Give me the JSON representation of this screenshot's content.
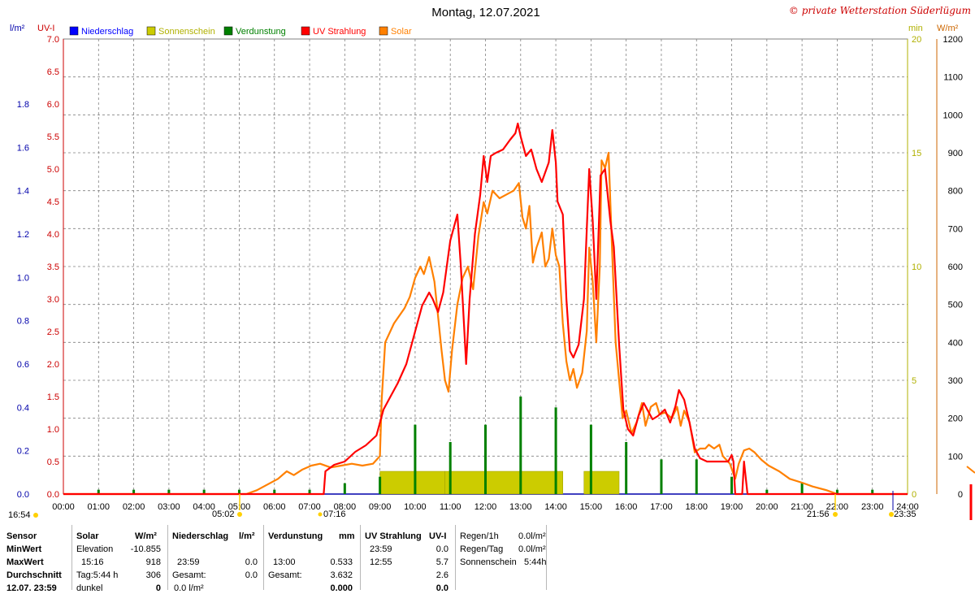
{
  "title": "Montag, 12.07.2021",
  "copyright": "© private Wetterstation Süderlügum",
  "left_axis_units": [
    "l/m²",
    "UV-I"
  ],
  "right_axis_units": [
    "min",
    "W/m²"
  ],
  "legend": [
    {
      "name": "Niederschlag",
      "color": "#0000ff"
    },
    {
      "name": "Sonnenschein",
      "color": "#cccc00"
    },
    {
      "name": "Verdunstung",
      "color": "#008000"
    },
    {
      "name": "UV Strahlung",
      "color": "#ff0000"
    },
    {
      "name": "Solar",
      "color": "#ff8000"
    }
  ],
  "colors": {
    "niederschlag": "#0000ff",
    "sonnenschein": "#cccc00",
    "verdunstung": "#008000",
    "uv": "#ff0000",
    "solar": "#ff8000",
    "uvaxis": "#dd0000",
    "sunaxis": "#b0b000",
    "grid": "#808080"
  },
  "sun_marks": {
    "sunrise": "05:02",
    "sunset": "21:56",
    "uv_start": "07:16",
    "moon_left": "16:54",
    "moon_right": "23:35"
  },
  "chart_data": {
    "type": "line",
    "x_axis": {
      "ticks": [
        "00:00",
        "01:00",
        "02:00",
        "03:00",
        "04:00",
        "05:00",
        "06:00",
        "07:00",
        "08:00",
        "09:00",
        "10:00",
        "11:00",
        "12:00",
        "13:00",
        "14:00",
        "15:00",
        "16:00",
        "17:00",
        "18:00",
        "19:00",
        "20:00",
        "21:00",
        "22:00",
        "23:00",
        "24:00"
      ],
      "range_hours": [
        0,
        24
      ]
    },
    "y_axes": {
      "niederschlag": {
        "unit": "l/m²",
        "ticks": [
          "0.0",
          "0.2",
          "0.4",
          "0.6",
          "0.8",
          "1.0",
          "1.2",
          "1.4",
          "1.6",
          "1.8"
        ],
        "range": [
          0,
          2.1
        ]
      },
      "uv_index": {
        "unit": "UV-I",
        "ticks": [
          "0.0",
          "0.5",
          "1.0",
          "1.5",
          "2.0",
          "2.5",
          "3.0",
          "3.5",
          "4.0",
          "4.5",
          "5.0",
          "5.5",
          "6.0",
          "6.5",
          "7.0"
        ],
        "range": [
          0,
          7
        ]
      },
      "sunshine_min": {
        "unit": "min",
        "ticks": [
          "0",
          "5",
          "10",
          "15",
          "20"
        ],
        "range": [
          0,
          20
        ]
      },
      "solar": {
        "unit": "W/m²",
        "ticks": [
          "0",
          "100",
          "200",
          "300",
          "400",
          "500",
          "600",
          "700",
          "800",
          "900",
          "1000",
          "1100",
          "1200"
        ],
        "range": [
          0,
          1200
        ]
      }
    },
    "grid": true,
    "series": [
      {
        "name": "UV Strahlung",
        "axis": "uv_index",
        "color": "#ff0000",
        "points": [
          [
            0,
            0
          ],
          [
            7.4,
            0
          ],
          [
            7.45,
            0.35
          ],
          [
            7.7,
            0.45
          ],
          [
            8.0,
            0.5
          ],
          [
            8.3,
            0.65
          ],
          [
            8.6,
            0.75
          ],
          [
            8.9,
            0.9
          ],
          [
            9.1,
            1.3
          ],
          [
            9.3,
            1.5
          ],
          [
            9.5,
            1.7
          ],
          [
            9.75,
            2.0
          ],
          [
            10.0,
            2.5
          ],
          [
            10.2,
            2.9
          ],
          [
            10.4,
            3.1
          ],
          [
            10.5,
            3.0
          ],
          [
            10.65,
            2.8
          ],
          [
            10.8,
            3.1
          ],
          [
            11.0,
            3.9
          ],
          [
            11.2,
            4.3
          ],
          [
            11.3,
            3.5
          ],
          [
            11.45,
            2.0
          ],
          [
            11.55,
            3.0
          ],
          [
            11.7,
            4.0
          ],
          [
            11.85,
            4.6
          ],
          [
            11.95,
            5.2
          ],
          [
            12.05,
            4.8
          ],
          [
            12.15,
            5.2
          ],
          [
            12.3,
            5.25
          ],
          [
            12.5,
            5.3
          ],
          [
            12.7,
            5.45
          ],
          [
            12.85,
            5.55
          ],
          [
            12.92,
            5.7
          ],
          [
            13.0,
            5.5
          ],
          [
            13.15,
            5.2
          ],
          [
            13.3,
            5.3
          ],
          [
            13.45,
            5.0
          ],
          [
            13.6,
            4.8
          ],
          [
            13.8,
            5.1
          ],
          [
            13.9,
            5.6
          ],
          [
            14.0,
            5.1
          ],
          [
            14.05,
            4.5
          ],
          [
            14.2,
            4.3
          ],
          [
            14.3,
            3.0
          ],
          [
            14.4,
            2.2
          ],
          [
            14.5,
            2.1
          ],
          [
            14.65,
            2.3
          ],
          [
            14.8,
            3.0
          ],
          [
            14.95,
            5.0
          ],
          [
            15.05,
            4.2
          ],
          [
            15.15,
            3.0
          ],
          [
            15.27,
            4.9
          ],
          [
            15.4,
            5.0
          ],
          [
            15.55,
            4.2
          ],
          [
            15.65,
            3.8
          ],
          [
            15.8,
            2.3
          ],
          [
            15.92,
            1.3
          ],
          [
            16.05,
            1.0
          ],
          [
            16.2,
            0.9
          ],
          [
            16.35,
            1.2
          ],
          [
            16.5,
            1.4
          ],
          [
            16.6,
            1.3
          ],
          [
            16.75,
            1.15
          ],
          [
            16.9,
            1.2
          ],
          [
            17.1,
            1.3
          ],
          [
            17.25,
            1.1
          ],
          [
            17.4,
            1.35
          ],
          [
            17.5,
            1.6
          ],
          [
            17.65,
            1.45
          ],
          [
            17.8,
            1.1
          ],
          [
            17.95,
            0.7
          ],
          [
            18.1,
            0.55
          ],
          [
            18.3,
            0.5
          ],
          [
            18.6,
            0.5
          ],
          [
            18.9,
            0.5
          ],
          [
            19.0,
            0.6
          ],
          [
            19.05,
            0.5
          ],
          [
            19.1,
            0
          ],
          [
            19.3,
            0
          ],
          [
            19.35,
            0.5
          ],
          [
            19.45,
            0
          ],
          [
            24,
            0
          ]
        ]
      },
      {
        "name": "Solar",
        "axis": "solar",
        "color": "#ff8000",
        "points": [
          [
            0,
            0
          ],
          [
            5.2,
            0
          ],
          [
            5.5,
            10
          ],
          [
            5.8,
            25
          ],
          [
            6.1,
            40
          ],
          [
            6.35,
            60
          ],
          [
            6.55,
            50
          ],
          [
            6.8,
            65
          ],
          [
            7.05,
            75
          ],
          [
            7.3,
            80
          ],
          [
            7.6,
            70
          ],
          [
            7.9,
            75
          ],
          [
            8.2,
            80
          ],
          [
            8.5,
            75
          ],
          [
            8.8,
            80
          ],
          [
            9.0,
            100
          ],
          [
            9.05,
            250
          ],
          [
            9.15,
            400
          ],
          [
            9.4,
            450
          ],
          [
            9.7,
            490
          ],
          [
            9.85,
            520
          ],
          [
            10.0,
            570
          ],
          [
            10.15,
            600
          ],
          [
            10.25,
            580
          ],
          [
            10.4,
            625
          ],
          [
            10.55,
            560
          ],
          [
            10.65,
            470
          ],
          [
            10.75,
            380
          ],
          [
            10.85,
            300
          ],
          [
            10.95,
            270
          ],
          [
            11.05,
            380
          ],
          [
            11.2,
            500
          ],
          [
            11.35,
            570
          ],
          [
            11.5,
            600
          ],
          [
            11.65,
            540
          ],
          [
            11.8,
            680
          ],
          [
            11.95,
            770
          ],
          [
            12.05,
            740
          ],
          [
            12.2,
            800
          ],
          [
            12.4,
            780
          ],
          [
            12.6,
            790
          ],
          [
            12.8,
            800
          ],
          [
            12.95,
            820
          ],
          [
            13.05,
            730
          ],
          [
            13.15,
            700
          ],
          [
            13.25,
            760
          ],
          [
            13.35,
            610
          ],
          [
            13.45,
            650
          ],
          [
            13.6,
            690
          ],
          [
            13.7,
            600
          ],
          [
            13.8,
            620
          ],
          [
            13.9,
            700
          ],
          [
            14.0,
            630
          ],
          [
            14.1,
            600
          ],
          [
            14.2,
            450
          ],
          [
            14.3,
            350
          ],
          [
            14.4,
            300
          ],
          [
            14.5,
            330
          ],
          [
            14.6,
            280
          ],
          [
            14.75,
            320
          ],
          [
            14.88,
            430
          ],
          [
            14.95,
            650
          ],
          [
            15.05,
            560
          ],
          [
            15.15,
            400
          ],
          [
            15.25,
            600
          ],
          [
            15.3,
            880
          ],
          [
            15.4,
            860
          ],
          [
            15.5,
            900
          ],
          [
            15.6,
            640
          ],
          [
            15.7,
            400
          ],
          [
            15.8,
            300
          ],
          [
            15.9,
            200
          ],
          [
            16.0,
            220
          ],
          [
            16.15,
            160
          ],
          [
            16.3,
            190
          ],
          [
            16.45,
            240
          ],
          [
            16.55,
            180
          ],
          [
            16.7,
            230
          ],
          [
            16.85,
            240
          ],
          [
            16.95,
            210
          ],
          [
            17.1,
            215
          ],
          [
            17.3,
            200
          ],
          [
            17.45,
            230
          ],
          [
            17.55,
            180
          ],
          [
            17.65,
            220
          ],
          [
            17.8,
            190
          ],
          [
            17.95,
            110
          ],
          [
            18.1,
            120
          ],
          [
            18.25,
            120
          ],
          [
            18.35,
            130
          ],
          [
            18.5,
            120
          ],
          [
            18.65,
            130
          ],
          [
            18.75,
            100
          ],
          [
            18.95,
            80
          ],
          [
            19.1,
            40
          ],
          [
            19.2,
            80
          ],
          [
            19.35,
            115
          ],
          [
            19.5,
            120
          ],
          [
            19.65,
            110
          ],
          [
            19.85,
            90
          ],
          [
            20.05,
            75
          ],
          [
            20.35,
            60
          ],
          [
            20.65,
            40
          ],
          [
            21.0,
            30
          ],
          [
            21.3,
            20
          ],
          [
            21.7,
            10
          ],
          [
            22.0,
            0
          ],
          [
            24,
            0
          ]
        ]
      },
      {
        "name": "Sonnenschein",
        "axis": "sunshine_min",
        "color": "#cccc00",
        "bars": [
          [
            9.0,
            10.85,
            1.0
          ],
          [
            10.85,
            14.2,
            1.0
          ],
          [
            14.8,
            15.8,
            1.0
          ]
        ]
      },
      {
        "name": "Verdunstung",
        "axis": "niederschlag",
        "color": "#008000",
        "bars": [
          [
            1,
            0.02
          ],
          [
            2,
            0.02
          ],
          [
            3,
            0.02
          ],
          [
            4,
            0.02
          ],
          [
            5,
            0.02
          ],
          [
            6,
            0.02
          ],
          [
            7,
            0.02
          ],
          [
            8,
            0.05
          ],
          [
            9,
            0.08
          ],
          [
            10,
            0.32
          ],
          [
            11,
            0.24
          ],
          [
            12,
            0.32
          ],
          [
            13,
            0.45
          ],
          [
            14,
            0.4
          ],
          [
            15,
            0.32
          ],
          [
            16,
            0.24
          ],
          [
            17,
            0.16
          ],
          [
            18,
            0.16
          ],
          [
            19,
            0.08
          ],
          [
            20,
            0.02
          ],
          [
            21,
            0.05
          ],
          [
            22,
            0.02
          ],
          [
            23,
            0.02
          ]
        ]
      },
      {
        "name": "Niederschlag",
        "axis": "niederschlag",
        "color": "#0000ff",
        "bars": []
      }
    ]
  },
  "stats": {
    "row_labels": [
      "Sensor",
      "MinWert",
      "MaxWert",
      "Durchschnitt",
      "12.07. 23:59"
    ],
    "solar": {
      "header": "Solar",
      "unit": "W/m²",
      "min_label": "Elevation",
      "min_value": "-10.855",
      "max_time": "15:16",
      "max_value": "918",
      "avg_label": "Tag:5:44 h",
      "avg_value": "306",
      "last_label": "dunkel",
      "last_value": "0"
    },
    "niederschlag": {
      "header": "Niederschlag",
      "unit": "l/m²",
      "max_time": "23:59",
      "max_value": "0.0",
      "avg_label": "Gesamt:",
      "avg_value": "0.0",
      "last_value": "0.0 l/m²"
    },
    "verdunstung": {
      "header": "Verdunstung",
      "unit": "mm",
      "max_time": "13:00",
      "max_value": "0.533",
      "avg_label": "Gesamt:",
      "avg_value": "3.632",
      "last_value": "0.000"
    },
    "uv": {
      "header": "UV Strahlung",
      "unit": "UV-I",
      "min_time": "23:59",
      "min_value": "0.0",
      "max_time": "12:55",
      "max_value": "5.7",
      "avg_value": "2.6",
      "last_value": "0.0"
    },
    "regen": [
      {
        "label": "Regen/1h",
        "value": "0.0l/m²"
      },
      {
        "label": "Regen/Tag",
        "value": "0.0l/m²"
      },
      {
        "label": "Sonnenschein",
        "value": "5:44h"
      }
    ]
  }
}
